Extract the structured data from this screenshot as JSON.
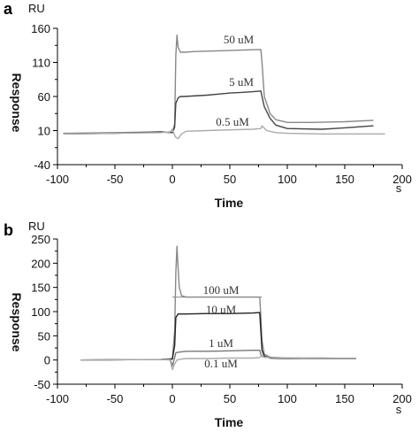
{
  "chart_data": [
    {
      "type": "line",
      "panel_label": "a",
      "ylabel": "Response",
      "y_unit": "RU",
      "xlabel": "Time",
      "x_unit": "s",
      "xlim": [
        -100,
        200
      ],
      "ylim": [
        -40,
        160
      ],
      "xticks": [
        "-100",
        "-50",
        "0",
        "50",
        "100",
        "150",
        "200"
      ],
      "yticks": [
        "-40",
        "10",
        "60",
        "110",
        "160"
      ],
      "grid": false,
      "series": [
        {
          "name": "50 uM",
          "color": "#888888",
          "x": [
            -95,
            -50,
            -10,
            0,
            2,
            3,
            4,
            5,
            7,
            10,
            20,
            40,
            60,
            77,
            78,
            80,
            85,
            90,
            100,
            120,
            150,
            175
          ],
          "y": [
            6,
            7,
            8,
            7,
            20,
            120,
            150,
            132,
            125,
            125,
            126,
            127,
            128,
            129,
            110,
            60,
            35,
            26,
            22,
            22,
            23,
            25
          ]
        },
        {
          "name": "5 uM",
          "color": "#444444",
          "x": [
            -95,
            -50,
            -10,
            0,
            2,
            3,
            5,
            7,
            10,
            30,
            50,
            60,
            70,
            77,
            78,
            80,
            85,
            90,
            100,
            130,
            150,
            175
          ],
          "y": [
            5,
            6,
            8,
            7,
            15,
            50,
            58,
            60,
            60,
            62,
            65,
            66,
            67,
            68,
            60,
            45,
            28,
            18,
            13,
            12,
            14,
            17
          ]
        },
        {
          "name": "0.5 uM",
          "color": "#aaaaaa",
          "x": [
            -95,
            -50,
            -10,
            -2,
            0,
            2,
            3,
            5,
            8,
            12,
            30,
            50,
            70,
            77,
            78,
            82,
            90,
            100,
            130,
            150,
            185
          ],
          "y": [
            5,
            6,
            7,
            8,
            12,
            3,
            0,
            -2,
            5,
            9,
            10,
            11,
            12,
            13,
            17,
            10,
            7,
            6,
            5,
            5,
            5
          ]
        }
      ],
      "annotations": [
        "50 uM",
        "5 uM",
        "0.5 uM"
      ]
    },
    {
      "type": "line",
      "panel_label": "b",
      "ylabel": "Response",
      "y_unit": "RU",
      "xlabel": "Time",
      "x_unit": "s",
      "xlim": [
        -100,
        200
      ],
      "ylim": [
        -50,
        250
      ],
      "xticks": [
        "-100",
        "-50",
        "0",
        "50",
        "100",
        "150",
        "200"
      ],
      "yticks": [
        "-50",
        "0",
        "50",
        "100",
        "150",
        "200",
        "250"
      ],
      "grid": false,
      "series": [
        {
          "name": "100 uM",
          "color": "#888888",
          "x": [
            -80,
            -10,
            0,
            2,
            3,
            4,
            5,
            6,
            8,
            12,
            20,
            40,
            60,
            76,
            77,
            78,
            80,
            85,
            100,
            130,
            160
          ],
          "y": [
            0,
            1,
            3,
            60,
            180,
            235,
            190,
            150,
            133,
            130,
            130,
            130,
            130,
            130,
            90,
            40,
            12,
            6,
            4,
            3,
            3
          ]
        },
        {
          "name": "10 uM",
          "color": "#222222",
          "x": [
            -80,
            -10,
            0,
            2,
            3,
            5,
            8,
            12,
            30,
            50,
            70,
            76,
            77,
            78,
            80,
            85,
            100,
            130,
            160
          ],
          "y": [
            0,
            1,
            2,
            30,
            88,
            95,
            95,
            95,
            96,
            96,
            97,
            98,
            60,
            20,
            8,
            4,
            3,
            3,
            3
          ]
        },
        {
          "name": "1 uM",
          "color": "#777777",
          "x": [
            -80,
            -10,
            -2,
            0,
            2,
            3,
            5,
            8,
            12,
            30,
            50,
            70,
            76,
            77,
            78,
            80,
            85,
            100,
            130,
            160
          ],
          "y": [
            0,
            1,
            2,
            -12,
            5,
            15,
            16,
            17,
            18,
            18,
            19,
            20,
            20,
            12,
            8,
            6,
            5,
            4,
            4,
            3
          ]
        },
        {
          "name": "0.1 uM",
          "color": "#aaaaaa",
          "x": [
            -80,
            -10,
            -2,
            0,
            2,
            4,
            8,
            12,
            30,
            50,
            70,
            76,
            77,
            80,
            85,
            100,
            130,
            160
          ],
          "y": [
            0,
            1,
            0,
            -20,
            -8,
            0,
            2,
            3,
            3,
            4,
            4,
            5,
            8,
            6,
            5,
            4,
            3,
            3
          ]
        }
      ],
      "annotations": [
        "100 uM",
        "10 uM",
        "1 uM",
        "0.1 uM"
      ]
    }
  ]
}
